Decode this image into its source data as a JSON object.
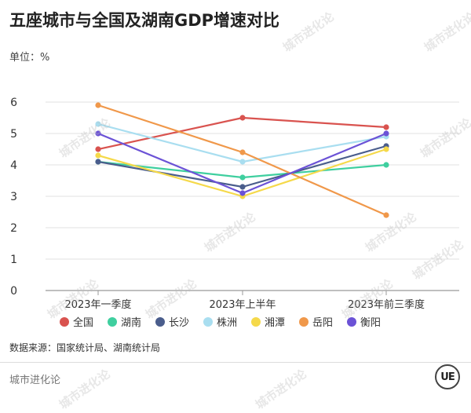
{
  "title": "五座城市与全国及湖南GDP增速对比",
  "unit_label": "单位：%",
  "source_label": "数据来源：国家统计局、湖南统计局",
  "brand_label": "城市进化论",
  "logo_text": "UE",
  "watermark_text": "城市进化论",
  "chart_data": {
    "type": "line",
    "title": "五座城市与全国及湖南GDP增速对比",
    "xlabel": "",
    "ylabel": "单位：%",
    "categories": [
      "2023年一季度",
      "2023年上半年",
      "2023年前三季度"
    ],
    "ylim": [
      0,
      6
    ],
    "yticks": [
      0,
      1,
      2,
      3,
      4,
      5,
      6
    ],
    "grid": true,
    "legend_position": "bottom",
    "series": [
      {
        "name": "全国",
        "color": "#d9534f",
        "values": [
          4.5,
          5.5,
          5.2
        ]
      },
      {
        "name": "湖南",
        "color": "#3fcf9f",
        "values": [
          4.1,
          3.6,
          4.0
        ]
      },
      {
        "name": "长沙",
        "color": "#4a5d8c",
        "values": [
          4.1,
          3.3,
          4.6
        ]
      },
      {
        "name": "株洲",
        "color": "#a9def0",
        "values": [
          5.3,
          4.1,
          4.9
        ]
      },
      {
        "name": "湘潭",
        "color": "#f5d94a",
        "values": [
          4.3,
          3.0,
          4.5
        ]
      },
      {
        "name": "岳阳",
        "color": "#f0984a",
        "values": [
          5.9,
          4.4,
          2.4
        ]
      },
      {
        "name": "衡阳",
        "color": "#6b52d6",
        "values": [
          5.0,
          3.1,
          5.0
        ]
      }
    ]
  }
}
